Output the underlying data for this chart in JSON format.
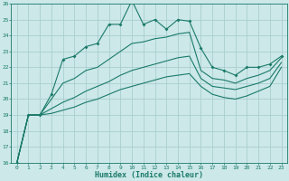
{
  "xlabel": "Humidex (Indice chaleur)",
  "ylabel": "",
  "bg_color": "#cce8e8",
  "grid_color": "#aacece",
  "line_color": "#1a7a6a",
  "xlim": [
    -0.5,
    23.5
  ],
  "ylim": [
    16,
    26
  ],
  "xticks": [
    0,
    1,
    2,
    3,
    4,
    5,
    6,
    7,
    8,
    9,
    10,
    11,
    12,
    13,
    14,
    15,
    16,
    17,
    18,
    19,
    20,
    21,
    22,
    23
  ],
  "yticks": [
    16,
    17,
    18,
    19,
    20,
    21,
    22,
    23,
    24,
    25,
    26
  ],
  "curve1_x": [
    0,
    1,
    2,
    3,
    4,
    5,
    6,
    7,
    8,
    9,
    10,
    11,
    12,
    13,
    14,
    15,
    16,
    17,
    18,
    19,
    20,
    21,
    22,
    23
  ],
  "curve1_y": [
    16.0,
    19.0,
    19.0,
    20.3,
    22.5,
    22.7,
    23.3,
    23.5,
    24.7,
    24.7,
    26.2,
    24.7,
    25.0,
    24.4,
    25.0,
    24.9,
    23.2,
    22.0,
    21.8,
    21.5,
    22.0,
    22.0,
    22.2,
    22.7
  ],
  "curve2_x": [
    0,
    1,
    2,
    3,
    4,
    5,
    6,
    7,
    8,
    9,
    10,
    11,
    12,
    13,
    14,
    15,
    16,
    17,
    18,
    19,
    20,
    21,
    22,
    23
  ],
  "curve2_y": [
    16.0,
    19.0,
    19.0,
    20.0,
    21.0,
    21.3,
    21.8,
    22.0,
    22.5,
    23.0,
    23.5,
    23.6,
    23.8,
    23.9,
    24.1,
    24.2,
    21.8,
    21.3,
    21.2,
    21.0,
    21.3,
    21.5,
    21.8,
    22.6
  ],
  "curve3_x": [
    0,
    1,
    2,
    3,
    4,
    5,
    6,
    7,
    8,
    9,
    10,
    11,
    12,
    13,
    14,
    15,
    16,
    17,
    18,
    19,
    20,
    21,
    22,
    23
  ],
  "curve3_y": [
    16.0,
    19.0,
    19.0,
    19.4,
    19.8,
    20.1,
    20.5,
    20.8,
    21.1,
    21.5,
    21.8,
    22.0,
    22.2,
    22.4,
    22.6,
    22.7,
    21.3,
    20.8,
    20.7,
    20.6,
    20.8,
    21.0,
    21.3,
    22.3
  ],
  "curve4_x": [
    0,
    1,
    2,
    3,
    4,
    5,
    6,
    7,
    8,
    9,
    10,
    11,
    12,
    13,
    14,
    15,
    16,
    17,
    18,
    19,
    20,
    21,
    22,
    23
  ],
  "curve4_y": [
    16.0,
    19.0,
    19.0,
    19.1,
    19.3,
    19.5,
    19.8,
    20.0,
    20.3,
    20.6,
    20.8,
    21.0,
    21.2,
    21.4,
    21.5,
    21.6,
    20.8,
    20.3,
    20.1,
    20.0,
    20.2,
    20.5,
    20.8,
    22.0
  ]
}
